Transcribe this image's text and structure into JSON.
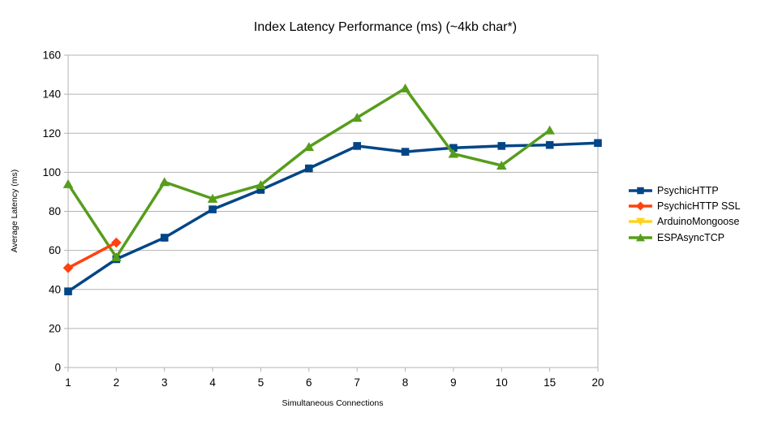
{
  "chart_data": {
    "type": "line",
    "title": "Index Latency Performance (ms) (~4kb char*)",
    "xlabel": "Simultaneous Connections",
    "ylabel": "Average Latency (ms)",
    "categories": [
      "1",
      "2",
      "3",
      "4",
      "5",
      "6",
      "7",
      "8",
      "9",
      "10",
      "15",
      "20"
    ],
    "ylim": [
      0,
      160
    ],
    "ytick_step": 20,
    "grid": "horizontal",
    "legend_position": "right",
    "axis_color": "#b3b3b3",
    "text_color": "#000000",
    "series": [
      {
        "name": "PsychicHTTP",
        "color": "#004586",
        "marker": "square",
        "values": [
          39,
          55.5,
          66.5,
          81,
          91,
          102,
          113.5,
          110.5,
          112.5,
          113.5,
          114,
          115
        ]
      },
      {
        "name": "PsychicHTTP SSL",
        "color": "#ff420e",
        "marker": "diamond",
        "values": [
          51,
          64,
          null,
          null,
          null,
          null,
          null,
          null,
          null,
          null,
          null,
          null
        ]
      },
      {
        "name": "ArduinoMongoose",
        "color": "#ffd320",
        "marker": "triangle-down",
        "values": [
          null,
          null,
          null,
          null,
          null,
          null,
          null,
          null,
          null,
          null,
          null,
          null
        ]
      },
      {
        "name": "ESPAsyncTCP",
        "color": "#579d1c",
        "marker": "triangle-up",
        "values": [
          94,
          56.5,
          95,
          86.5,
          93.5,
          113,
          128,
          143,
          109.5,
          103.5,
          121.5,
          null
        ]
      }
    ]
  }
}
